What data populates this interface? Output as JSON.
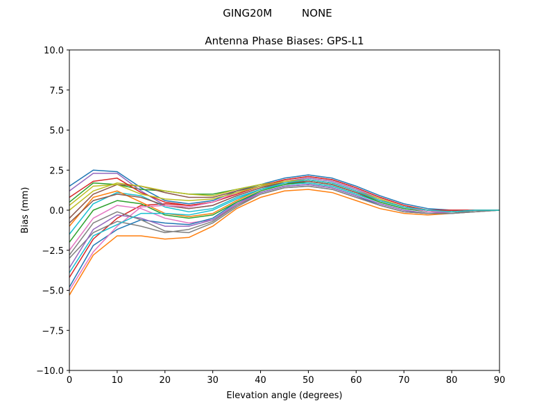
{
  "chart_data": {
    "type": "line",
    "suptitle": "GING20M         NONE",
    "title": "Antenna Phase Biases: GPS-L1",
    "xlabel": "Elevation angle (degrees)",
    "ylabel": "Bias (mm)",
    "xlim": [
      0,
      90
    ],
    "ylim": [
      -10,
      10
    ],
    "grid": false,
    "xticks": [
      "0",
      "10",
      "20",
      "30",
      "40",
      "50",
      "60",
      "70",
      "80",
      "90"
    ],
    "yticks": [
      "−10.0",
      "−7.5",
      "−5.0",
      "−2.5",
      "0.0",
      "2.5",
      "5.0",
      "7.5",
      "10.0"
    ],
    "colors": [
      "#1f77b4",
      "#ff7f0e",
      "#2ca02c",
      "#d62728",
      "#9467bd",
      "#8c564b",
      "#e377c2",
      "#7f7f7f",
      "#bcbd22",
      "#17becf"
    ],
    "x": [
      0,
      5,
      10,
      15,
      20,
      25,
      30,
      35,
      40,
      45,
      50,
      55,
      60,
      65,
      70,
      75,
      80,
      85,
      90
    ],
    "series": [
      [
        1.5,
        2.5,
        2.4,
        1.4,
        0.6,
        0.4,
        0.6,
        1.2,
        1.6,
        2.0,
        2.2,
        2.0,
        1.5,
        0.9,
        0.4,
        0.1,
        0.0,
        0.0,
        0.0
      ],
      [
        -5.3,
        -2.8,
        -1.6,
        -1.6,
        -1.8,
        -1.7,
        -1.0,
        0.1,
        0.8,
        1.2,
        1.3,
        1.1,
        0.6,
        0.1,
        -0.2,
        -0.3,
        -0.2,
        -0.1,
        0.0
      ],
      [
        0.5,
        1.7,
        1.6,
        1.3,
        1.2,
        1.0,
        1.0,
        1.3,
        1.6,
        1.7,
        1.7,
        1.5,
        1.0,
        0.5,
        0.1,
        -0.1,
        -0.1,
        0.0,
        0.0
      ],
      [
        -4.2,
        -1.8,
        -0.5,
        0.3,
        0.4,
        0.3,
        0.5,
        1.0,
        1.5,
        1.9,
        2.1,
        1.9,
        1.4,
        0.8,
        0.3,
        0.0,
        0.0,
        0.0,
        0.0
      ],
      [
        1.2,
        2.3,
        2.3,
        1.2,
        0.3,
        0.1,
        0.3,
        0.9,
        1.4,
        1.8,
        2.0,
        1.8,
        1.3,
        0.7,
        0.2,
        0.0,
        -0.1,
        0.0,
        0.0
      ],
      [
        -0.5,
        1.0,
        1.6,
        1.5,
        1.1,
        0.8,
        0.8,
        1.2,
        1.5,
        1.7,
        1.8,
        1.6,
        1.1,
        0.6,
        0.2,
        0.0,
        -0.1,
        0.0,
        0.0
      ],
      [
        -2.5,
        -0.5,
        0.3,
        0.1,
        -0.5,
        -0.8,
        -0.6,
        0.3,
        1.1,
        1.5,
        1.6,
        1.4,
        0.9,
        0.4,
        0.0,
        -0.2,
        -0.1,
        0.0,
        0.0
      ],
      [
        -3.0,
        -1.4,
        -0.7,
        -1.0,
        -1.4,
        -1.2,
        -0.7,
        0.3,
        1.0,
        1.4,
        1.5,
        1.3,
        0.8,
        0.3,
        -0.1,
        -0.2,
        -0.2,
        0.0,
        0.0
      ],
      [
        0.0,
        1.2,
        1.7,
        1.5,
        1.2,
        1.0,
        0.9,
        1.3,
        1.6,
        1.8,
        1.9,
        1.7,
        1.2,
        0.6,
        0.2,
        0.0,
        -0.1,
        0.0,
        0.0
      ],
      [
        -1.5,
        0.4,
        1.1,
        0.9,
        0.2,
        -0.1,
        0.1,
        0.8,
        1.3,
        1.6,
        1.7,
        1.5,
        1.0,
        0.5,
        0.1,
        -0.1,
        -0.1,
        0.0,
        0.0
      ],
      [
        -4.8,
        -2.2,
        -1.2,
        -0.6,
        -0.8,
        -0.9,
        -0.5,
        0.5,
        1.1,
        1.5,
        1.6,
        1.4,
        0.9,
        0.3,
        -0.1,
        -0.2,
        -0.2,
        -0.1,
        0.0
      ],
      [
        -1.0,
        0.8,
        1.2,
        0.5,
        -0.2,
        -0.4,
        -0.2,
        0.6,
        1.3,
        1.7,
        1.9,
        1.7,
        1.2,
        0.6,
        0.2,
        0.0,
        -0.1,
        0.0,
        0.0
      ],
      [
        -2.0,
        0.0,
        0.6,
        0.4,
        -0.3,
        -0.5,
        -0.3,
        0.5,
        1.2,
        1.6,
        1.8,
        1.6,
        1.1,
        0.5,
        0.1,
        -0.1,
        -0.1,
        0.0,
        0.0
      ],
      [
        0.8,
        1.8,
        2.0,
        1.1,
        0.5,
        0.3,
        0.5,
        1.0,
        1.5,
        1.9,
        2.1,
        1.9,
        1.4,
        0.8,
        0.3,
        0.0,
        0.0,
        0.0,
        0.0
      ],
      [
        -3.6,
        -1.2,
        -0.3,
        -0.5,
        -1.0,
        -1.0,
        -0.6,
        0.4,
        1.1,
        1.5,
        1.6,
        1.4,
        0.9,
        0.4,
        0.0,
        -0.2,
        -0.1,
        0.0,
        0.0
      ],
      [
        -0.8,
        0.6,
        1.0,
        0.8,
        0.3,
        0.1,
        0.3,
        0.9,
        1.4,
        1.7,
        1.8,
        1.6,
        1.1,
        0.6,
        0.2,
        0.0,
        -0.1,
        0.0,
        0.0
      ],
      [
        -5.0,
        -2.6,
        -1.0,
        0.2,
        0.3,
        0.2,
        0.5,
        1.1,
        1.5,
        1.8,
        1.9,
        1.7,
        1.2,
        0.6,
        0.2,
        -0.1,
        -0.1,
        0.0,
        0.0
      ],
      [
        -2.8,
        -0.8,
        -0.1,
        -0.6,
        -1.3,
        -1.4,
        -0.8,
        0.2,
        1.0,
        1.4,
        1.5,
        1.3,
        0.8,
        0.3,
        -0.1,
        -0.2,
        -0.2,
        -0.1,
        0.0
      ],
      [
        0.3,
        1.5,
        1.6,
        1.0,
        0.7,
        0.6,
        0.7,
        1.1,
        1.5,
        1.8,
        1.9,
        1.7,
        1.2,
        0.7,
        0.2,
        0.0,
        -0.1,
        0.0,
        0.0
      ],
      [
        -3.9,
        -1.6,
        -0.9,
        -0.2,
        -0.2,
        -0.3,
        0.0,
        0.7,
        1.3,
        1.7,
        1.9,
        1.7,
        1.2,
        0.6,
        0.2,
        0.0,
        -0.1,
        0.0,
        0.0
      ]
    ]
  }
}
